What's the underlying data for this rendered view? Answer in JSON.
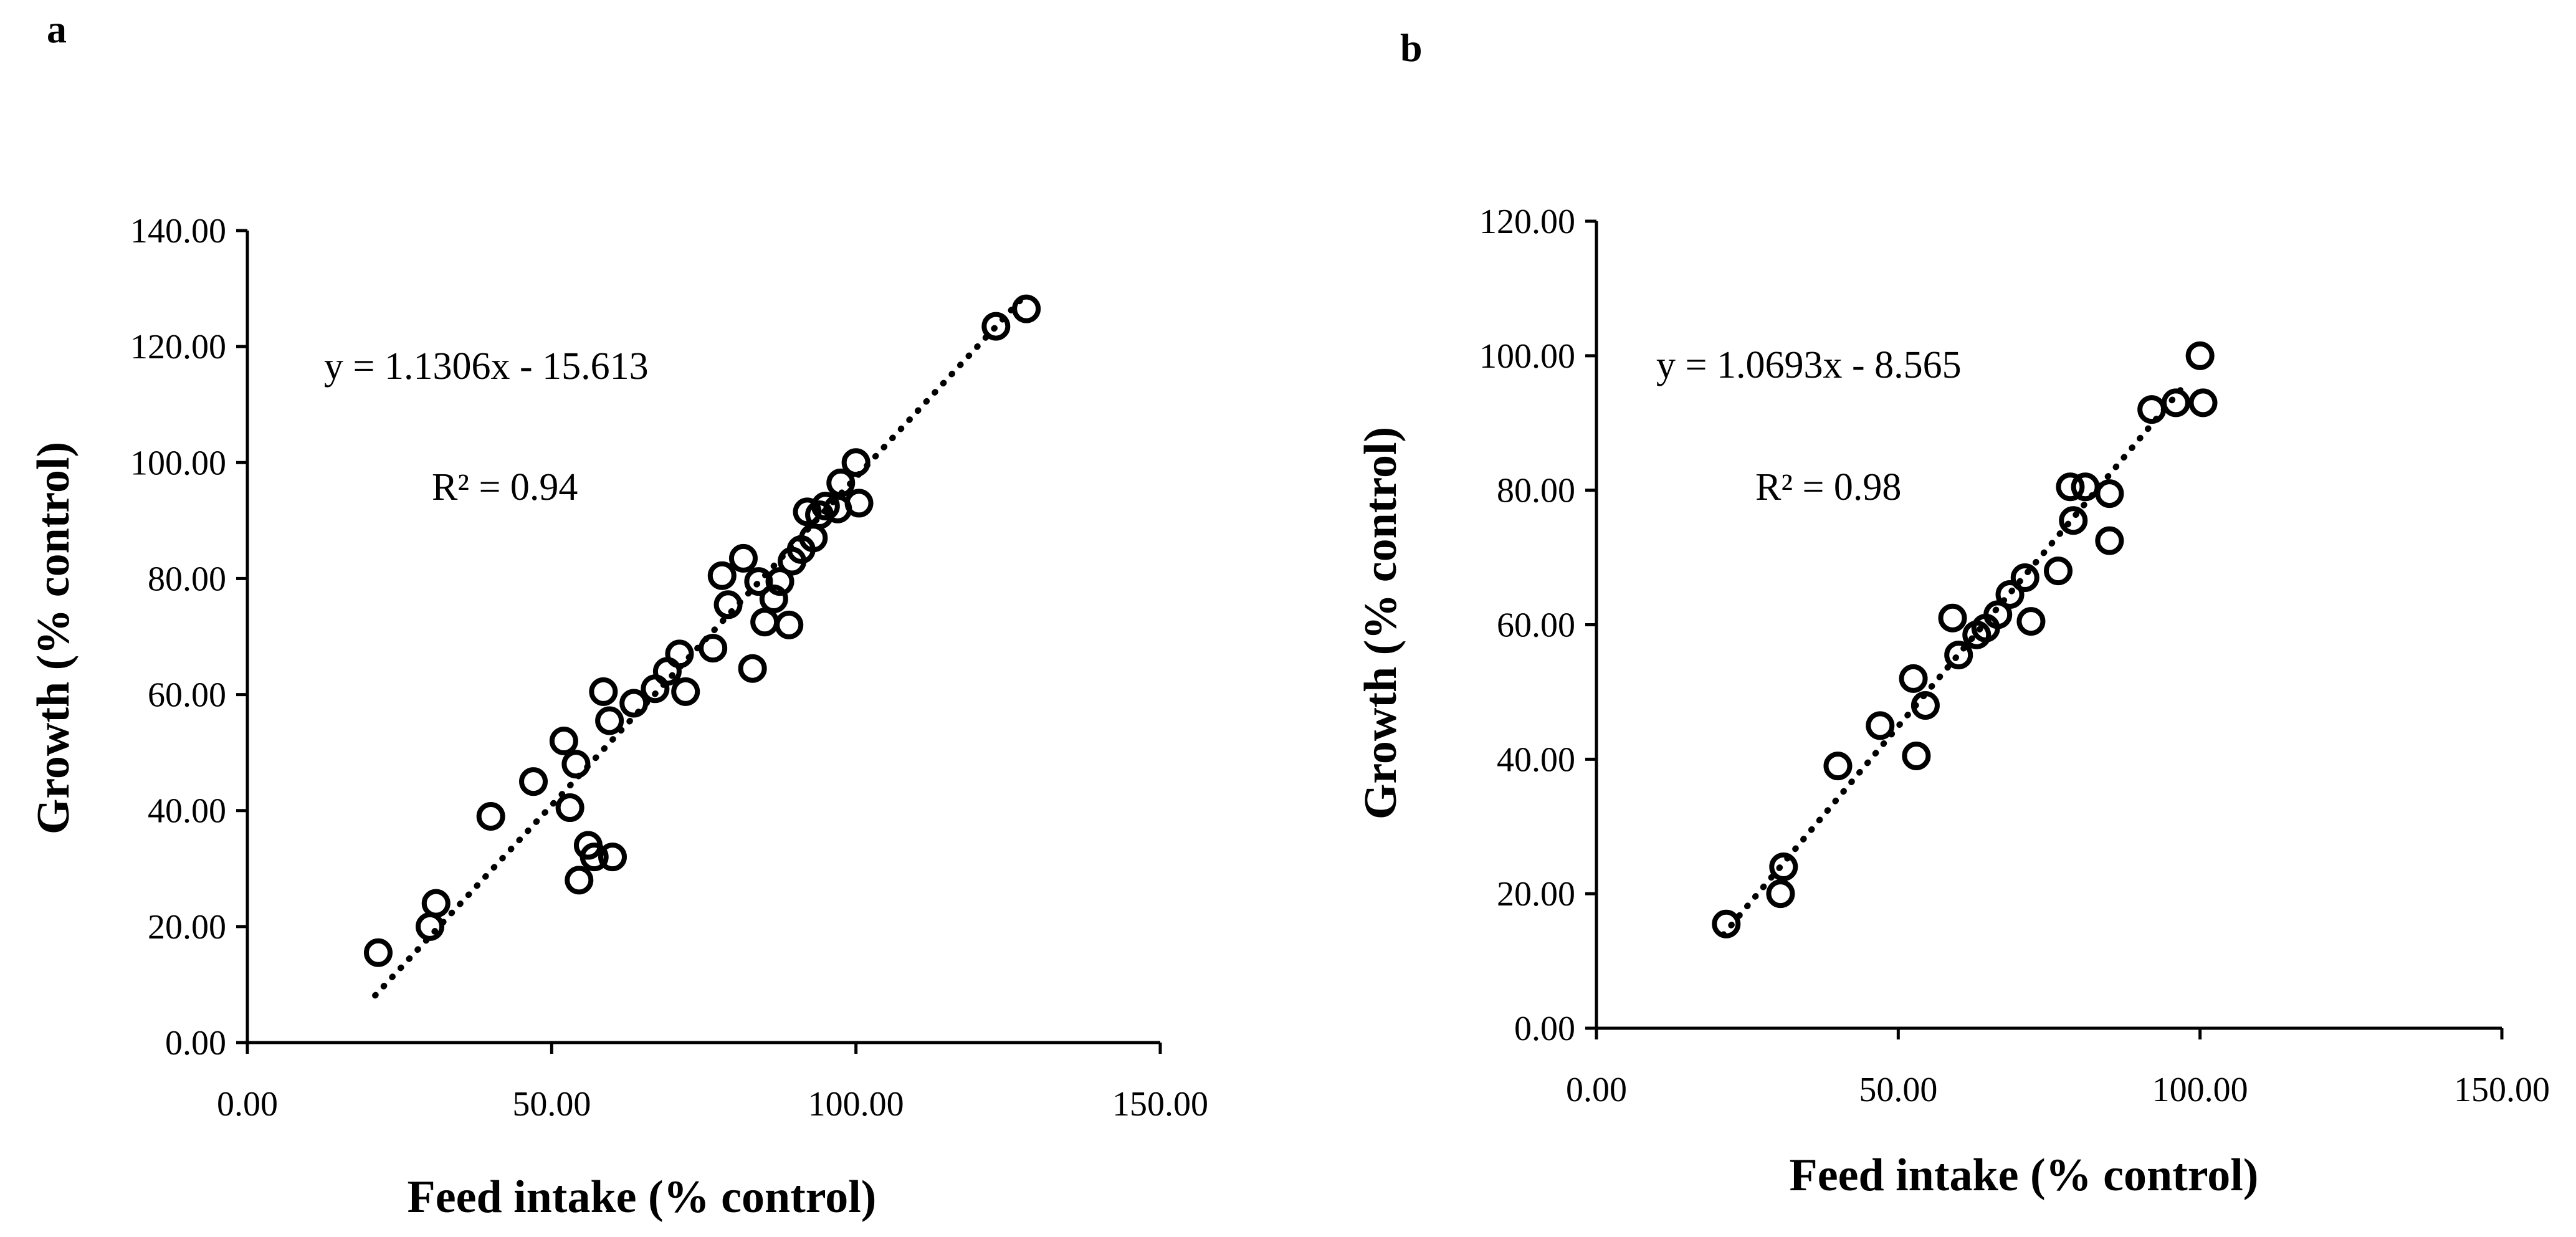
{
  "chart_data": [
    {
      "type": "scatter",
      "panel_label": "a",
      "title": "",
      "xlabel": "Feed intake (% control)",
      "ylabel": "Growth (% control)",
      "xlim": [
        0,
        150
      ],
      "ylim": [
        0,
        140
      ],
      "x_ticks": [
        0,
        50,
        100,
        150
      ],
      "y_ticks": [
        0,
        20,
        40,
        60,
        80,
        100,
        120,
        140
      ],
      "x_tick_labels": [
        "0.00",
        "50.00",
        "100.00",
        "150.00"
      ],
      "y_tick_labels": [
        "0.00",
        "20.00",
        "40.00",
        "60.00",
        "80.00",
        "100.00",
        "120.00",
        "140.00"
      ],
      "equation": "y = 1.1306x - 15.613",
      "r_squared": "R² = 0.94",
      "trendline": {
        "slope": 1.1306,
        "intercept": -15.613,
        "x_range": [
          21,
          128
        ]
      },
      "grid": false,
      "series": [
        {
          "name": "observations",
          "points": [
            [
              21.5,
              15.5
            ],
            [
              30,
              20
            ],
            [
              31,
              24
            ],
            [
              40,
              39
            ],
            [
              47,
              45
            ],
            [
              52,
              52
            ],
            [
              53,
              40.5
            ],
            [
              54,
              48
            ],
            [
              54.5,
              28
            ],
            [
              56,
              34
            ],
            [
              57,
              32
            ],
            [
              60,
              32
            ],
            [
              58.5,
              60.5
            ],
            [
              59.5,
              55.5
            ],
            [
              63.5,
              58.5
            ],
            [
              67,
              61
            ],
            [
              69,
              64
            ],
            [
              71,
              67
            ],
            [
              72,
              60.5
            ],
            [
              76.5,
              68
            ],
            [
              78,
              80.5
            ],
            [
              79,
              75.5
            ],
            [
              81.5,
              83.5
            ],
            [
              83,
              64.5
            ],
            [
              84,
              79.5
            ],
            [
              85,
              72.5
            ],
            [
              86.5,
              76.5
            ],
            [
              87.5,
              79.5
            ],
            [
              89,
              72
            ],
            [
              89.5,
              83
            ],
            [
              91,
              85
            ],
            [
              92,
              91.5
            ],
            [
              93,
              87
            ],
            [
              94,
              91
            ],
            [
              95,
              92.5
            ],
            [
              97,
              92
            ],
            [
              97.5,
              96.5
            ],
            [
              100,
              100
            ],
            [
              100.5,
              93
            ],
            [
              123,
              123.5
            ],
            [
              128,
              126.5
            ]
          ]
        }
      ]
    },
    {
      "type": "scatter",
      "panel_label": "b",
      "title": "",
      "xlabel": "Feed intake (% control)",
      "ylabel": "Growth (% control)",
      "xlim": [
        0,
        150
      ],
      "ylim": [
        0,
        120
      ],
      "x_ticks": [
        0,
        50,
        100,
        150
      ],
      "y_ticks": [
        0,
        20,
        40,
        60,
        80,
        100,
        120
      ],
      "x_tick_labels": [
        "0.00",
        "50.00",
        "100.00",
        "150.00"
      ],
      "y_tick_labels": [
        "0.00",
        "20.00",
        "40.00",
        "60.00",
        "80.00",
        "100.00",
        "120.00"
      ],
      "equation": "y = 1.0693x - 8.565",
      "r_squared": "R² = 0.98",
      "trendline": {
        "slope": 1.0693,
        "intercept": -8.565,
        "x_range": [
          21,
          97
        ]
      },
      "grid": false,
      "series": [
        {
          "name": "observations",
          "points": [
            [
              21.5,
              15.5
            ],
            [
              30.5,
              20
            ],
            [
              31,
              24
            ],
            [
              40,
              39
            ],
            [
              47,
              45
            ],
            [
              52.5,
              52
            ],
            [
              53,
              40.5
            ],
            [
              54.5,
              48
            ],
            [
              59,
              61
            ],
            [
              60,
              55.5
            ],
            [
              63,
              58.5
            ],
            [
              64.5,
              59.5
            ],
            [
              66.5,
              61.5
            ],
            [
              68.5,
              64.5
            ],
            [
              71,
              67
            ],
            [
              72,
              60.5
            ],
            [
              76.5,
              68
            ],
            [
              78.5,
              80.5
            ],
            [
              79,
              75.5
            ],
            [
              81,
              80.5
            ],
            [
              85,
              79.5
            ],
            [
              85,
              72.5
            ],
            [
              92,
              92
            ],
            [
              96,
              93
            ],
            [
              100,
              100
            ],
            [
              100.5,
              93
            ]
          ]
        }
      ]
    }
  ]
}
